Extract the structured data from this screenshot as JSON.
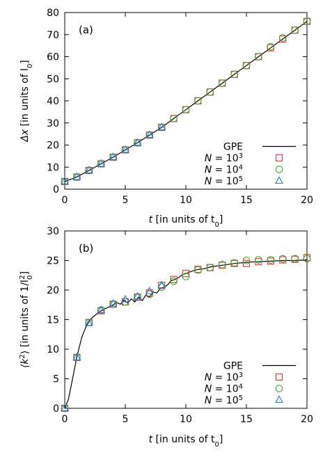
{
  "chart_data": [
    {
      "type": "line",
      "panel_label": "(a)",
      "xlim": [
        0,
        20
      ],
      "ylim": [
        0,
        80
      ],
      "xticks": [
        0,
        5,
        10,
        15,
        20
      ],
      "yticks": [
        0,
        10,
        20,
        30,
        40,
        50,
        60,
        70,
        80
      ],
      "xlabel_var": "t",
      "xlabel_rest": "[in units of t",
      "xlabel_sub": "0",
      "xlabel_end": "]",
      "ylabel_var": "Δx",
      "ylabel_rest": "[in units of l",
      "ylabel_sub": "0",
      "ylabel_end": "]",
      "legend_position": "bottom-right",
      "series": [
        {
          "name": "GPE",
          "kind": "line",
          "color": "#000000",
          "x": [
            0,
            1,
            2,
            3,
            4,
            5,
            6,
            7,
            8,
            9,
            10,
            11,
            12,
            13,
            14,
            15,
            16,
            17,
            18,
            19,
            20
          ],
          "y": [
            3.5,
            5.5,
            8.5,
            11.5,
            14.5,
            17.8,
            21,
            24.5,
            28,
            32,
            36,
            40,
            44,
            48,
            52,
            56,
            60,
            64,
            68,
            72,
            76
          ]
        },
        {
          "name_prefix": "N",
          "name_eq": "= 10",
          "name_exp": "3",
          "kind": "square",
          "color": "#e8302f",
          "x": [
            0,
            1,
            2,
            3,
            4,
            5,
            6,
            7,
            8,
            9,
            10,
            11,
            12,
            13,
            14,
            15,
            16,
            17,
            18,
            19,
            20
          ],
          "y": [
            3.5,
            5.5,
            8.5,
            11.5,
            14.5,
            17.8,
            21,
            24.5,
            28,
            32,
            36,
            40,
            44,
            48,
            52,
            56,
            60,
            64,
            68,
            72,
            76
          ]
        },
        {
          "name_prefix": "N",
          "name_eq": "= 10",
          "name_exp": "4",
          "kind": "circle",
          "color": "#3aa635",
          "x": [
            0,
            1,
            2,
            3,
            4,
            5,
            6,
            7,
            8,
            9,
            10,
            11,
            12,
            13,
            14,
            15,
            16,
            17,
            18,
            19,
            20
          ],
          "y": [
            3.5,
            5.5,
            8.5,
            11.5,
            14.5,
            17.8,
            21,
            24.5,
            28,
            32,
            36,
            40,
            44,
            48,
            52,
            56,
            60,
            64.5,
            68.5,
            72,
            76
          ]
        },
        {
          "name_prefix": "N",
          "name_eq": "= 10",
          "name_exp": "5",
          "kind": "triangle",
          "color": "#2f6fd6",
          "x": [
            0,
            1,
            2,
            3,
            4,
            5,
            6,
            7,
            8
          ],
          "y": [
            3.5,
            5.5,
            8.5,
            11.5,
            14.5,
            17.8,
            21,
            24.5,
            28
          ]
        }
      ]
    },
    {
      "type": "line",
      "panel_label": "(b)",
      "xlim": [
        0,
        20
      ],
      "ylim": [
        0,
        30
      ],
      "xticks": [
        0,
        5,
        10,
        15,
        20
      ],
      "yticks": [
        0,
        5,
        10,
        15,
        20,
        25,
        30
      ],
      "xlabel_var": "t",
      "xlabel_rest": "[in units of t",
      "xlabel_sub": "0",
      "xlabel_end": "]",
      "ylabel_var": "⟨k",
      "ylabel_sup": "2",
      "ylabel_rest": "⟩ [in units of 1/l",
      "ylabel_sub": "0",
      "ylabel_sup2": "2",
      "ylabel_end": "]",
      "legend_position": "bottom-right",
      "series": [
        {
          "name": "GPE",
          "kind": "line",
          "color": "#000000",
          "x": [
            0,
            0.3,
            0.6,
            1.0,
            1.4,
            1.8,
            2.2,
            2.6,
            3.0,
            3.5,
            4.0,
            4.3,
            4.6,
            4.9,
            5.2,
            5.5,
            5.8,
            6.1,
            6.4,
            6.7,
            7.0,
            7.3,
            7.6,
            7.9,
            8.2,
            8.5,
            8.8,
            9.1,
            9.4,
            9.7,
            10.0,
            10.5,
            11,
            11.5,
            12,
            13,
            14,
            15,
            16,
            17,
            18,
            19,
            20
          ],
          "y": [
            0,
            1.5,
            4.5,
            8.7,
            12.0,
            14.0,
            15.2,
            15.9,
            16.5,
            17.0,
            17.5,
            17.9,
            17.6,
            18.3,
            17.8,
            18.5,
            18.0,
            18.8,
            18.2,
            19.2,
            18.8,
            19.7,
            19.5,
            20.3,
            20.5,
            20.9,
            21.6,
            21.8,
            22.1,
            22.6,
            22.8,
            23.2,
            23.5,
            23.6,
            23.9,
            24.2,
            24.5,
            24.7,
            24.8,
            24.9,
            25.0,
            25.0,
            25.1
          ]
        },
        {
          "name_prefix": "N",
          "name_eq": "= 10",
          "name_exp": "3",
          "kind": "square",
          "color": "#e8302f",
          "x": [
            0,
            1,
            2,
            3,
            4,
            5,
            6,
            7,
            8,
            9,
            10,
            11,
            12,
            13,
            14,
            15,
            16,
            17,
            18,
            19,
            20
          ],
          "y": [
            0,
            8.6,
            14.5,
            16.5,
            17.6,
            18.0,
            18.8,
            19.5,
            20.8,
            21.8,
            22.8,
            23.5,
            23.8,
            24.2,
            24.5,
            24.5,
            24.8,
            24.9,
            25.1,
            25.2,
            25.5
          ]
        },
        {
          "name_prefix": "N",
          "name_eq": "= 10",
          "name_exp": "4",
          "kind": "circle",
          "color": "#3aa635",
          "x": [
            0,
            1,
            2,
            3,
            4,
            5,
            6,
            7,
            8,
            9,
            10,
            11,
            12,
            13,
            14,
            15,
            16,
            17,
            18,
            19,
            20
          ],
          "y": [
            0,
            8.6,
            14.5,
            16.6,
            17.6,
            18.0,
            18.8,
            19.3,
            20.5,
            21.5,
            22.3,
            23.4,
            23.8,
            24.3,
            24.6,
            25.0,
            25.1,
            25.1,
            25.3,
            25.3,
            25.3
          ]
        },
        {
          "name_prefix": "N",
          "name_eq": "= 10",
          "name_exp": "5",
          "kind": "triangle",
          "color": "#2f6fd6",
          "x": [
            0,
            1,
            2,
            3,
            4,
            5,
            6,
            7,
            8
          ],
          "y": [
            0,
            8.6,
            14.4,
            16.6,
            17.7,
            18.4,
            18.9,
            19.8,
            20.8
          ]
        }
      ]
    }
  ]
}
